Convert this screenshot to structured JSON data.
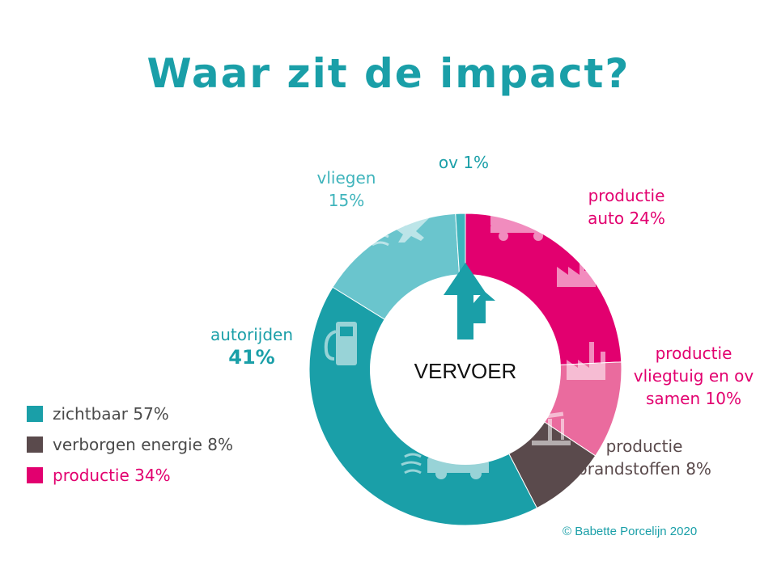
{
  "title": "Waar zit de impact?",
  "center_label": "VERVOER",
  "copyright": "© Babette Porcelijn 2020",
  "chart_data": {
    "type": "pie",
    "title": "Waar zit de impact?",
    "center_label": "VERVOER",
    "slices": [
      {
        "label": "productie auto 24%",
        "value": 24,
        "color": "#e2006f",
        "icons": [
          "truck-icon",
          "factory-icon"
        ]
      },
      {
        "label": "productie vliegtuig en ov samen 10%",
        "value": 10,
        "color": "#ea6b9e",
        "icons": [
          "factory-icon"
        ]
      },
      {
        "label": "productie brandstoffen 8%",
        "value": 8,
        "color": "#5a4a4c",
        "icons": [
          "oil-pump-icon"
        ]
      },
      {
        "label": "autorijden 41%",
        "value": 41,
        "color": "#1a9fa8",
        "icons": [
          "car-icon",
          "fuel-pump-icon"
        ]
      },
      {
        "label": "vliegen 15%",
        "value": 15,
        "color": "#6ac5cd",
        "icons": [
          "airplane-icon"
        ]
      },
      {
        "label": "ov 1%",
        "value": 1,
        "color": "#3fb4bc",
        "icons": []
      }
    ],
    "legend": [
      {
        "label": "zichtbaar 57%",
        "color": "#1a9fa8"
      },
      {
        "label": "verborgen energie 8%",
        "color": "#5a4a4c"
      },
      {
        "label": "productie 34%",
        "color": "#e2006f"
      }
    ]
  },
  "labels": {
    "productie_auto": {
      "line1": "productie",
      "line2": "auto 24%"
    },
    "productie_vliegtuig": {
      "line1": "productie",
      "line2": "vliegtuig en ov",
      "line3": "samen 10%"
    },
    "productie_brandstoffen": {
      "line1": "productie",
      "line2": "brandstoffen 8%"
    },
    "autorijden": {
      "line1": "autorijden",
      "line2": "41%"
    },
    "vliegen": {
      "line1": "vliegen",
      "line2": "15%"
    },
    "ov": {
      "line1": "ov 1%"
    }
  }
}
